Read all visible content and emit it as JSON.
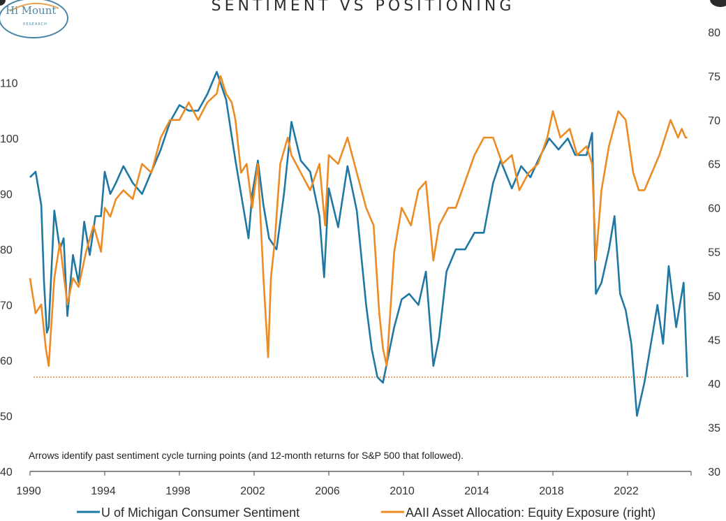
{
  "header": {
    "title": "SENTIMENT VS POSITIONING",
    "logo_main": "Hi Mount",
    "logo_sub": "RESEARCH"
  },
  "note": "Arrows identify past sentiment cycle turning points (and 12-month returns for S&P 500 that followed).",
  "colors": {
    "michigan": "#1f77a3",
    "aaii": "#ec8b24",
    "reference": "#e07a2e",
    "axis": "#444444",
    "logo": "#4a87a7"
  },
  "chart_data": {
    "type": "line",
    "title": "SENTIMENT VS POSITIONING",
    "xlim": [
      1990,
      2025.4
    ],
    "x_ticks": [
      "1990",
      "1994",
      "1998",
      "2002",
      "2006",
      "2010",
      "2014",
      "2018",
      "2022"
    ],
    "left_axis": {
      "ylim": [
        40,
        115
      ],
      "ticks": [
        "110",
        "100",
        "90",
        "80",
        "70",
        "60",
        "50",
        "40"
      ],
      "tick_values": [
        110,
        100,
        90,
        80,
        70,
        60,
        50,
        40
      ]
    },
    "right_axis": {
      "ylim": [
        30,
        80
      ],
      "ticks": [
        "80",
        "75",
        "70",
        "65",
        "60",
        "55",
        "50",
        "45",
        "40",
        "35",
        "30"
      ],
      "tick_values": [
        80,
        75,
        70,
        65,
        60,
        55,
        50,
        45,
        40,
        35,
        30
      ]
    },
    "grid": false,
    "legend_position": "bottom",
    "reference_line": {
      "axis": "left",
      "y": 57
    },
    "series": [
      {
        "name": "U of Michigan Consumer Sentiment",
        "axis": "left",
        "x": [
          1990.0,
          1990.3,
          1990.6,
          1990.75,
          1990.9,
          1991.0,
          1991.3,
          1991.6,
          1991.8,
          1992.0,
          1992.3,
          1992.6,
          1992.9,
          1993.2,
          1993.5,
          1993.8,
          1994.0,
          1994.3,
          1994.6,
          1995.0,
          1995.5,
          1996.0,
          1996.5,
          1997.0,
          1997.5,
          1998.0,
          1998.5,
          1999.0,
          1999.5,
          2000.0,
          2000.5,
          2001.0,
          2001.3,
          2001.7,
          2001.9,
          2002.2,
          2002.5,
          2002.8,
          2003.2,
          2003.6,
          2004.0,
          2004.5,
          2005.0,
          2005.5,
          2005.75,
          2006.0,
          2006.5,
          2007.0,
          2007.5,
          2008.0,
          2008.3,
          2008.6,
          2008.9,
          2009.2,
          2009.5,
          2009.9,
          2010.3,
          2010.8,
          2011.2,
          2011.6,
          2011.9,
          2012.3,
          2012.8,
          2013.3,
          2013.8,
          2014.3,
          2014.8,
          2015.2,
          2015.8,
          2016.3,
          2016.8,
          2017.2,
          2017.8,
          2018.3,
          2018.8,
          2019.2,
          2019.8,
          2020.1,
          2020.3,
          2020.6,
          2021.0,
          2021.3,
          2021.6,
          2021.9,
          2022.2,
          2022.5,
          2022.9,
          2023.2,
          2023.6,
          2023.9,
          2024.2,
          2024.6,
          2024.9,
          2025.0,
          2025.2
        ],
        "values": [
          93,
          94,
          88,
          74,
          65,
          66,
          87,
          80,
          82,
          68,
          79,
          74,
          85,
          79,
          86,
          86,
          94,
          90,
          92,
          95,
          92,
          90,
          94,
          98,
          103,
          106,
          105,
          105,
          108,
          112,
          107,
          96,
          90,
          82,
          90,
          96,
          88,
          82,
          80,
          90,
          103,
          96,
          94,
          86,
          75,
          91,
          84,
          95,
          87,
          70,
          62,
          57,
          56,
          61,
          66,
          71,
          72,
          70,
          76,
          59,
          64,
          76,
          80,
          80,
          83,
          83,
          92,
          96,
          91,
          95,
          93,
          96,
          100,
          98,
          100,
          97,
          97,
          101,
          72,
          74,
          80,
          86,
          72,
          69,
          63,
          50,
          56,
          62,
          70,
          63,
          77,
          66,
          72,
          74,
          57
        ]
      },
      {
        "name": "AAII Asset Allocation: Equity Exposure (right)",
        "axis": "right",
        "x": [
          1990.0,
          1990.3,
          1990.6,
          1990.85,
          1991.0,
          1991.3,
          1991.6,
          1992.0,
          1992.3,
          1992.6,
          1993.0,
          1993.4,
          1993.8,
          1994.0,
          1994.3,
          1994.6,
          1995.0,
          1995.5,
          1996.0,
          1996.5,
          1997.0,
          1997.5,
          1998.0,
          1998.5,
          1999.0,
          1999.5,
          2000.0,
          2000.2,
          2000.5,
          2000.8,
          2001.0,
          2001.3,
          2001.6,
          2001.9,
          2002.2,
          2002.5,
          2002.75,
          2002.9,
          2003.1,
          2003.4,
          2003.8,
          2004.0,
          2004.5,
          2005.0,
          2005.5,
          2005.8,
          2006.0,
          2006.5,
          2007.0,
          2007.5,
          2008.0,
          2008.4,
          2008.7,
          2008.9,
          2009.1,
          2009.5,
          2009.9,
          2010.4,
          2010.8,
          2011.2,
          2011.6,
          2011.9,
          2012.4,
          2012.8,
          2013.3,
          2013.8,
          2014.3,
          2014.8,
          2015.3,
          2015.8,
          2016.2,
          2016.7,
          2017.2,
          2017.7,
          2018.0,
          2018.4,
          2018.9,
          2019.3,
          2019.8,
          2020.1,
          2020.3,
          2020.6,
          2021.0,
          2021.5,
          2021.9,
          2022.3,
          2022.6,
          2022.9,
          2023.3,
          2023.7,
          2024.0,
          2024.3,
          2024.7,
          2024.9,
          2025.1,
          2025.2
        ],
        "values": [
          52,
          48,
          49,
          44,
          42,
          52,
          56,
          49,
          52,
          51,
          55,
          58,
          55,
          60,
          59,
          61,
          62,
          61,
          65,
          64,
          68,
          70,
          70,
          72,
          70,
          72,
          73,
          75,
          73,
          72,
          70,
          64,
          65,
          60,
          65,
          52,
          43,
          52,
          56,
          65,
          68,
          66,
          64,
          62,
          65,
          58,
          66,
          65,
          68,
          64,
          60,
          58,
          48,
          44,
          42,
          55,
          60,
          58,
          62,
          63,
          54,
          58,
          60,
          60,
          63,
          66,
          68,
          68,
          65,
          66,
          62,
          64,
          65,
          68,
          71,
          68,
          69,
          66,
          67,
          65,
          54,
          62,
          67,
          71,
          70,
          64,
          62,
          62,
          64,
          66,
          68,
          70,
          68,
          69,
          68,
          68
        ]
      }
    ]
  },
  "legend": [
    {
      "label": "U of Michigan Consumer Sentiment",
      "color": "#1f77a3"
    },
    {
      "label": "AAII Asset Allocation: Equity Exposure (right)",
      "color": "#ec8b24"
    }
  ]
}
